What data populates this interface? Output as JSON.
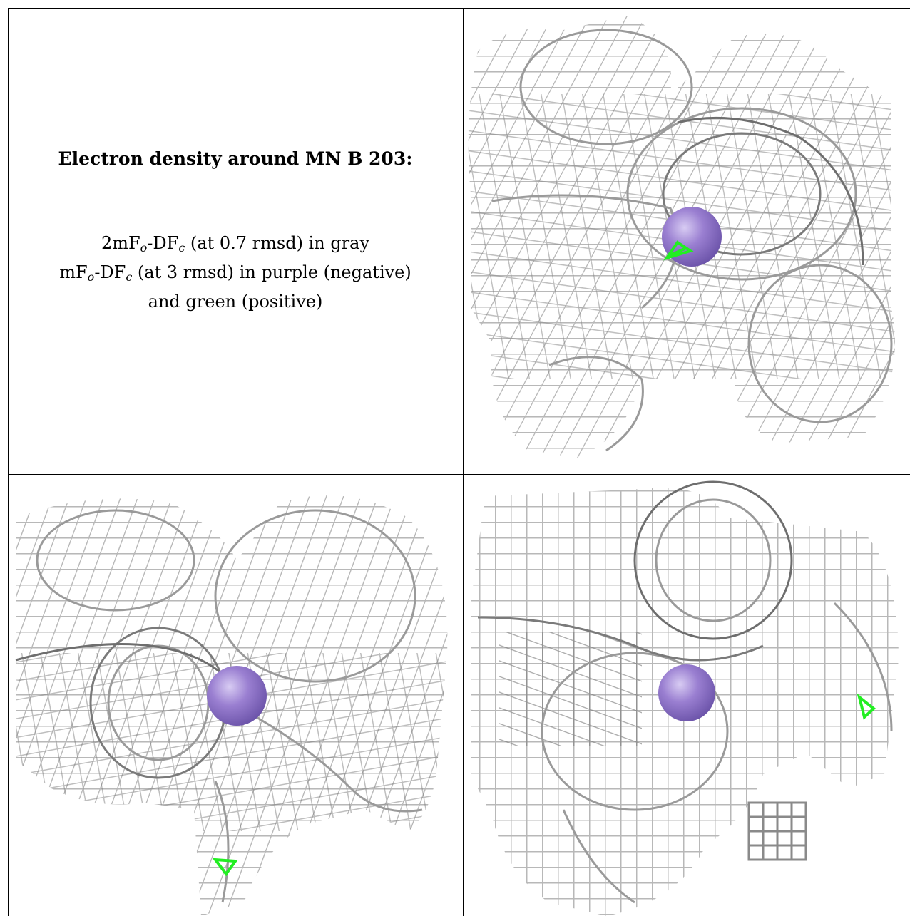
{
  "caption": {
    "title": "Electron density around MN B 203:",
    "line1": {
      "pre": "2mF",
      "sub1": "o",
      "mid": "-DF",
      "sub2": "c",
      "post": " (at 0.7 rmsd) in gray"
    },
    "line2": {
      "pre": "mF",
      "sub1": "o",
      "mid": "-DF",
      "sub2": "c",
      "post": " (at 3 rmsd) in purple (negative)"
    },
    "line3": "and green (positive)"
  },
  "colors": {
    "mesh_gray": "#b8b8b8",
    "mesh_dark": "#6e6e6e",
    "atom_purple": "#9a7fd1",
    "positive_green": "#22ee22",
    "border": "#000000"
  },
  "views": [
    {
      "name": "view-top-right",
      "atom": "MN B 203"
    },
    {
      "name": "view-bottom-left",
      "atom": "MN B 203"
    },
    {
      "name": "view-bottom-right",
      "atom": "MN B 203"
    }
  ]
}
